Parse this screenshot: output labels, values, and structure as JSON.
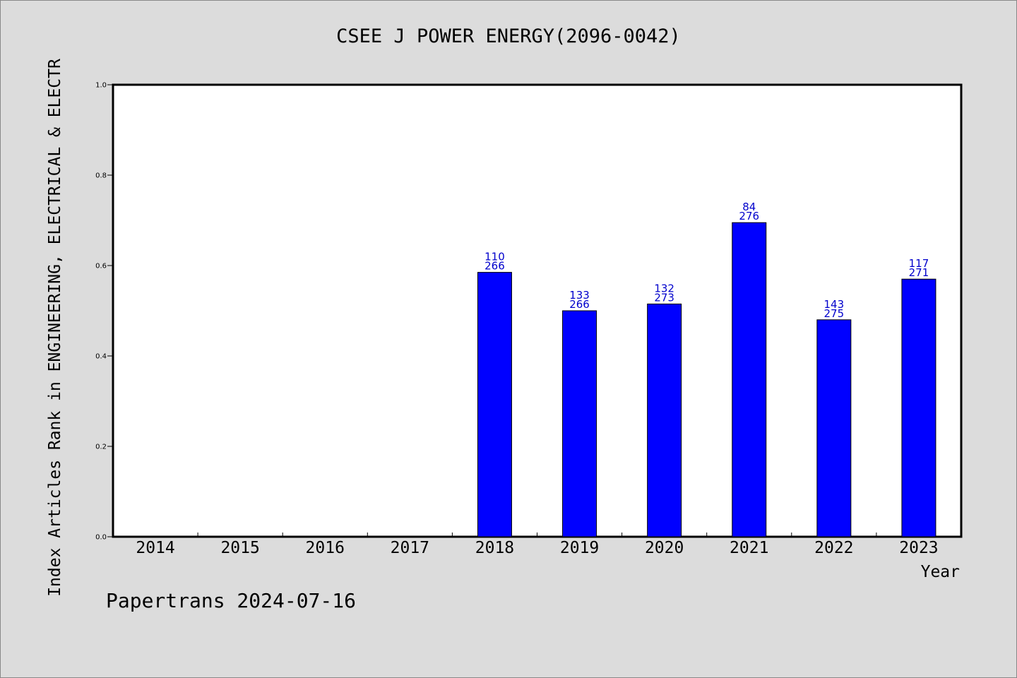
{
  "chart_data": {
    "type": "bar",
    "title": "CSEE J POWER ENERGY(2096-0042)",
    "xlabel": "Year",
    "ylabel": "Index Articles Rank in ENGINEERING, ELECTRICAL & ELECTR",
    "ylim": [
      0,
      1.0
    ],
    "yticks": [
      "0.0",
      "0.2",
      "0.4",
      "0.6",
      "0.8",
      "1.0"
    ],
    "categories": [
      "2014",
      "2015",
      "2016",
      "2017",
      "2018",
      "2019",
      "2020",
      "2021",
      "2022",
      "2023"
    ],
    "values": [
      null,
      null,
      null,
      null,
      0.585,
      0.5,
      0.515,
      0.695,
      0.48,
      0.57
    ],
    "labels_top": [
      "",
      "",
      "",
      "",
      "110",
      "133",
      "132",
      "84",
      "143",
      "117"
    ],
    "labels_bottom": [
      "",
      "",
      "",
      "",
      "266",
      "266",
      "273",
      "276",
      "275",
      "271"
    ],
    "grid": false,
    "legend": "none",
    "bar_color": "#0000ff",
    "label_color": "#0000cc"
  },
  "footer": "Papertrans 2024-07-16"
}
